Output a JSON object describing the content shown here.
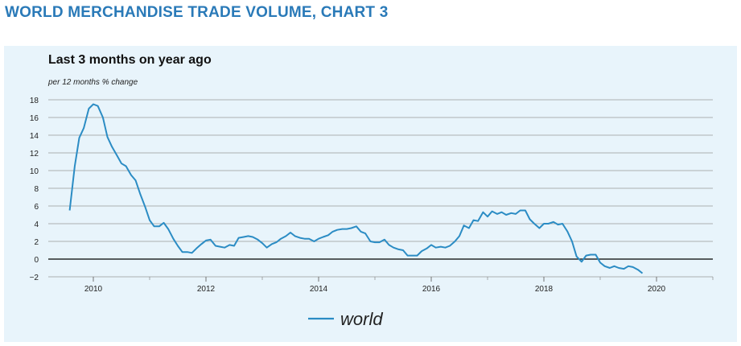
{
  "page": {
    "title": "WORLD MERCHANDISE TRADE VOLUME, CHART 3"
  },
  "chart_data": {
    "type": "line",
    "title": "Last 3 months on year ago",
    "subtitle": "per 12 months % change",
    "xlabel": "",
    "ylabel": "",
    "xlim": [
      2009.2,
      2021.0
    ],
    "ylim": [
      -2,
      18
    ],
    "xticks": [
      "2010",
      "2012",
      "2014",
      "2016",
      "2018",
      "2020"
    ],
    "yticks": [
      "18",
      "16",
      "14",
      "12",
      "10",
      "8",
      "6",
      "4",
      "2",
      "0",
      "−2"
    ],
    "grid": true,
    "legend_position": "bottom-center",
    "colors": {
      "series": "#2b8cc4",
      "grid": "#9a9a9a",
      "zero_line": "#000000",
      "title": "#2a7ab8",
      "panel": "#e8f4fb"
    },
    "series": [
      {
        "name": "world",
        "x": [
          2009.58,
          2009.67,
          2009.75,
          2009.83,
          2009.92,
          2010.0,
          2010.08,
          2010.17,
          2010.25,
          2010.33,
          2010.42,
          2010.5,
          2010.58,
          2010.67,
          2010.75,
          2010.83,
          2010.92,
          2011.0,
          2011.08,
          2011.17,
          2011.25,
          2011.33,
          2011.42,
          2011.5,
          2011.58,
          2011.67,
          2011.75,
          2011.83,
          2011.92,
          2012.0,
          2012.08,
          2012.17,
          2012.25,
          2012.33,
          2012.42,
          2012.5,
          2012.58,
          2012.67,
          2012.75,
          2012.83,
          2012.92,
          2013.0,
          2013.08,
          2013.17,
          2013.25,
          2013.33,
          2013.42,
          2013.5,
          2013.58,
          2013.67,
          2013.75,
          2013.83,
          2013.92,
          2014.0,
          2014.08,
          2014.17,
          2014.25,
          2014.33,
          2014.42,
          2014.5,
          2014.58,
          2014.67,
          2014.75,
          2014.83,
          2014.92,
          2015.0,
          2015.08,
          2015.17,
          2015.25,
          2015.33,
          2015.42,
          2015.5,
          2015.58,
          2015.67,
          2015.75,
          2015.83,
          2015.92,
          2016.0,
          2016.08,
          2016.17,
          2016.25,
          2016.33,
          2016.42,
          2016.5,
          2016.58,
          2016.67,
          2016.75,
          2016.83,
          2016.92,
          2017.0,
          2017.08,
          2017.17,
          2017.25,
          2017.33,
          2017.42,
          2017.5,
          2017.58,
          2017.67,
          2017.75,
          2017.83,
          2017.92,
          2018.0,
          2018.08,
          2018.17,
          2018.25,
          2018.33,
          2018.42,
          2018.5,
          2018.58,
          2018.67,
          2018.75,
          2018.83,
          2018.92,
          2019.0,
          2019.08,
          2019.17,
          2019.25,
          2019.33,
          2019.42,
          2019.5,
          2019.58,
          2019.67,
          2019.75
        ],
        "values": [
          5.5,
          10.5,
          13.7,
          14.8,
          17.0,
          17.5,
          17.3,
          16.0,
          13.8,
          12.7,
          11.7,
          10.8,
          10.5,
          9.5,
          8.9,
          7.4,
          5.9,
          4.4,
          3.7,
          3.7,
          4.1,
          3.4,
          2.3,
          1.5,
          0.8,
          0.8,
          0.7,
          1.2,
          1.7,
          2.1,
          2.2,
          1.5,
          1.4,
          1.3,
          1.6,
          1.5,
          2.4,
          2.5,
          2.6,
          2.5,
          2.2,
          1.8,
          1.3,
          1.7,
          1.9,
          2.3,
          2.6,
          3.0,
          2.6,
          2.4,
          2.3,
          2.3,
          2.0,
          2.3,
          2.5,
          2.7,
          3.1,
          3.3,
          3.4,
          3.4,
          3.5,
          3.7,
          3.1,
          2.9,
          2.0,
          1.9,
          1.9,
          2.2,
          1.6,
          1.3,
          1.1,
          1.0,
          0.4,
          0.4,
          0.4,
          0.9,
          1.2,
          1.6,
          1.3,
          1.4,
          1.3,
          1.5,
          2.0,
          2.6,
          3.8,
          3.5,
          4.4,
          4.3,
          5.3,
          4.8,
          5.4,
          5.1,
          5.3,
          5.0,
          5.2,
          5.1,
          5.5,
          5.5,
          4.5,
          4.0,
          3.5,
          4.0,
          4.0,
          4.2,
          3.9,
          4.0,
          3.1,
          2.0,
          0.3,
          -0.3,
          0.4,
          0.5,
          0.5,
          -0.4,
          -0.8,
          -1.0,
          -0.8,
          -1.0,
          -1.1,
          -0.8,
          -0.9,
          -1.2,
          -1.6
        ]
      }
    ]
  }
}
